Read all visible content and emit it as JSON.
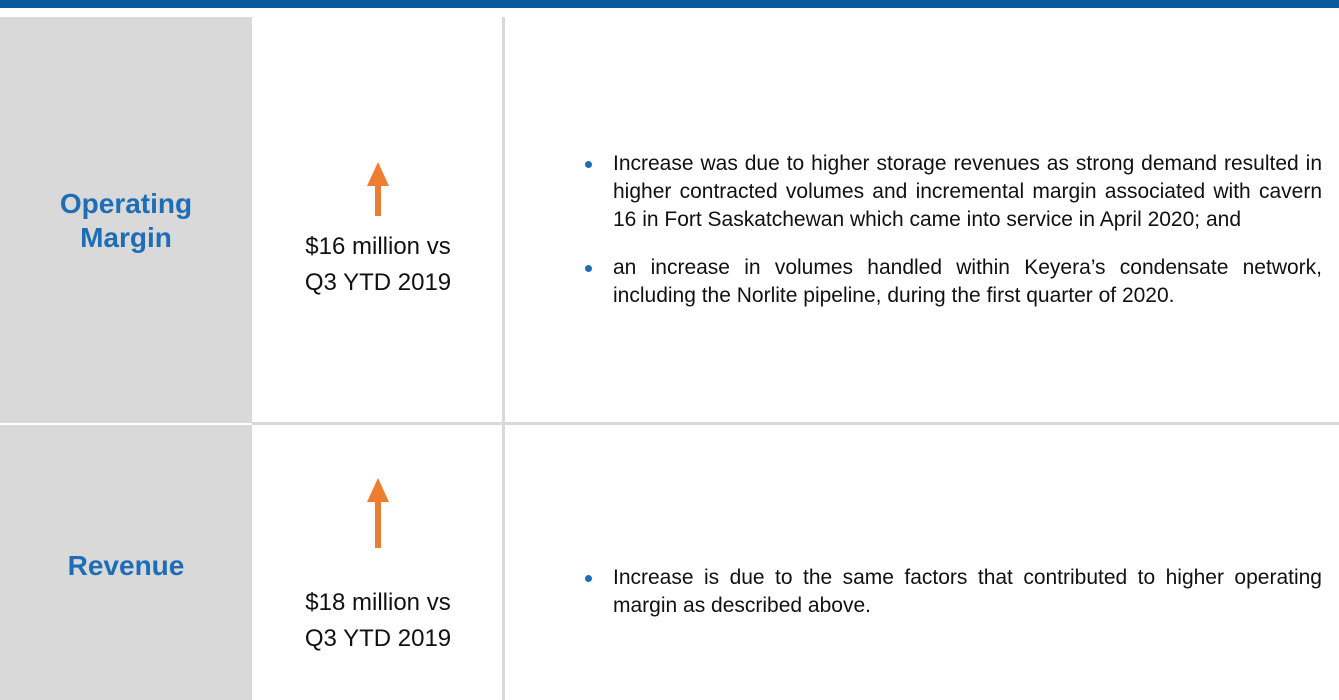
{
  "rows": [
    {
      "label": "Operating Margin",
      "amount": "$16 million vs Q3 YTD 2019",
      "bullets": [
        "Increase was due to higher storage revenues as strong demand resulted in higher contracted volumes and incremental margin associated with cavern 16 in Fort Saskatchewan which came into service in April 2020; and",
        "an increase in volumes handled within Keyera’s condensate network, including the Norlite pipeline, during the first quarter of 2020."
      ]
    },
    {
      "label": "Revenue",
      "amount": "$18 million vs Q3 YTD 2019",
      "bullets": [
        "Increase is due to the same factors that contributed to higher operating margin as described above."
      ]
    }
  ]
}
